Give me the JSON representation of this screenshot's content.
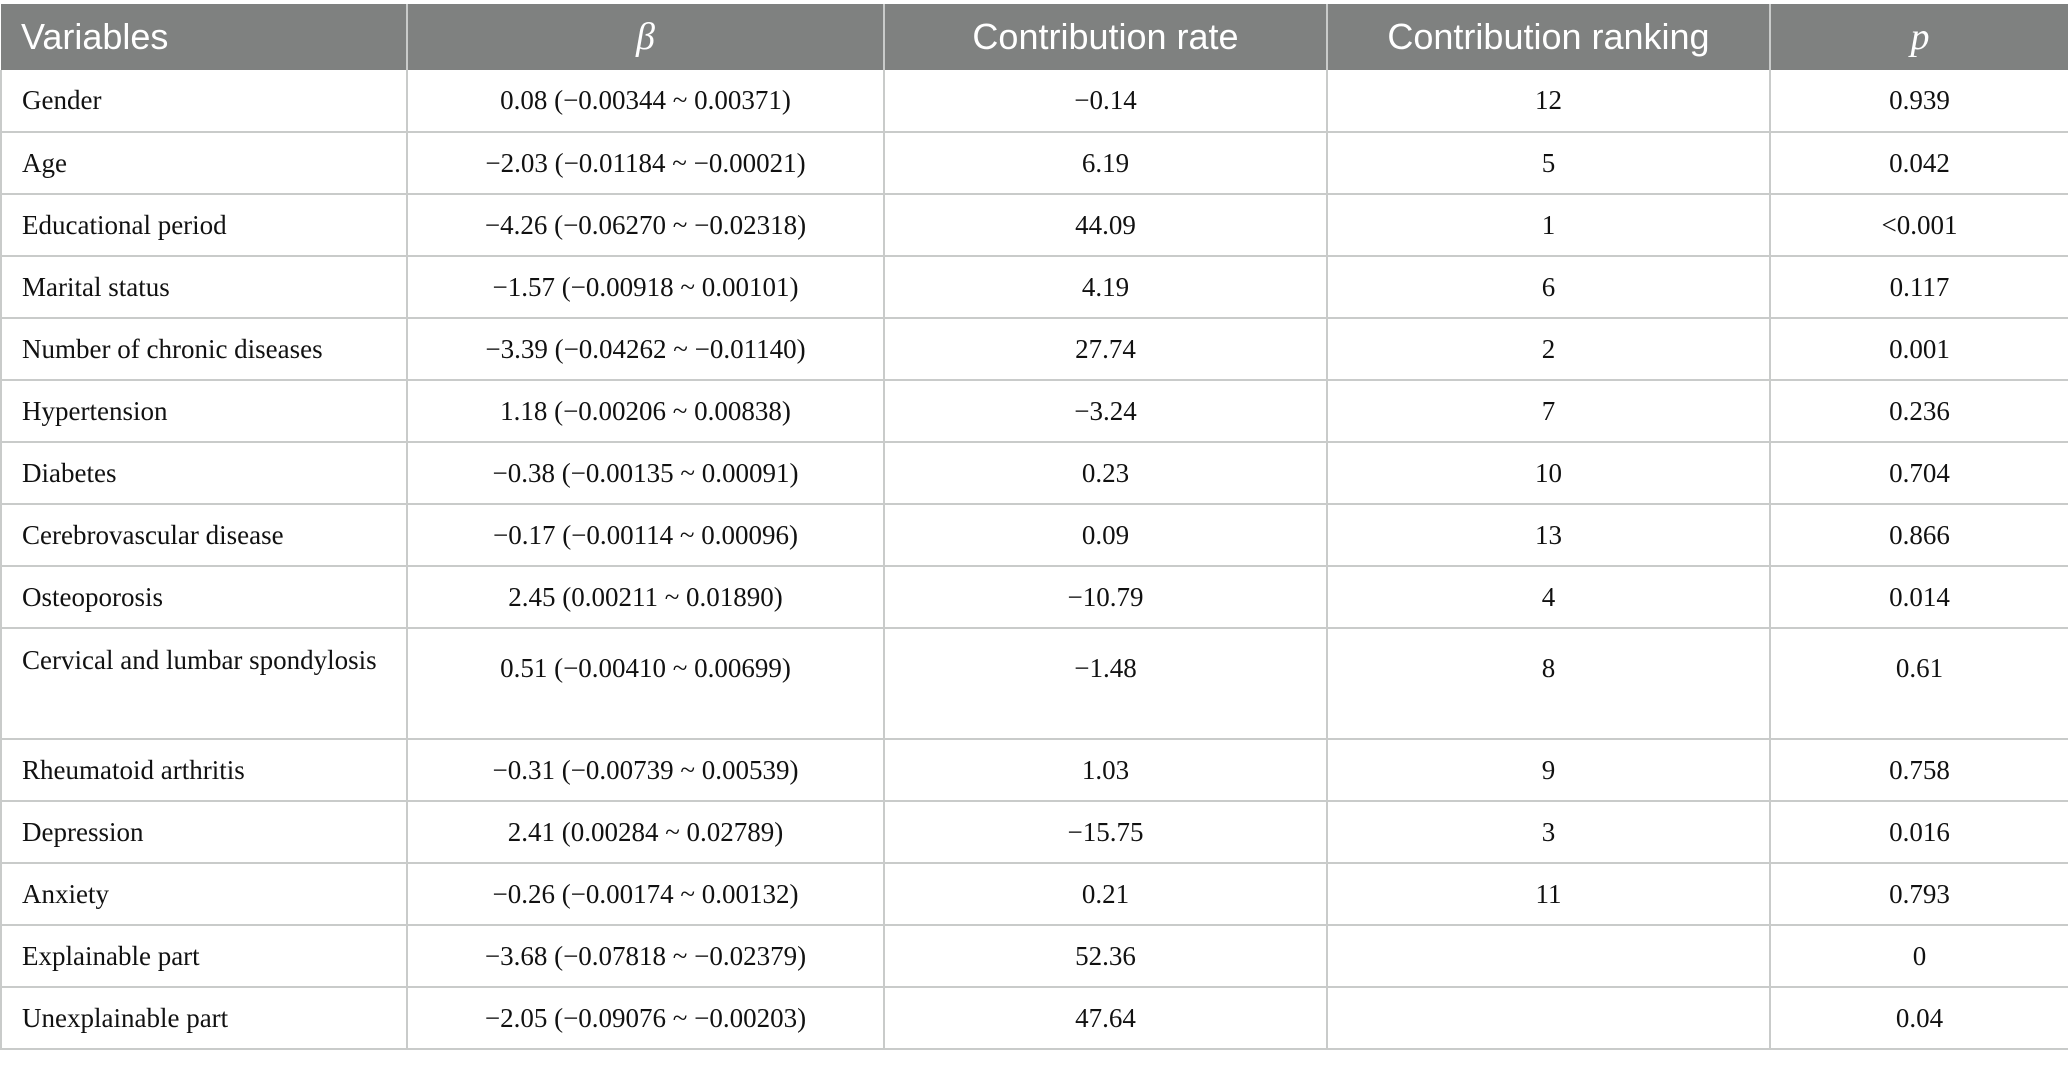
{
  "table": {
    "headers": [
      "Variables",
      "β",
      "Contribution rate",
      "Contribution ranking",
      "p"
    ],
    "rows": [
      [
        "Gender",
        "0.08 (−0.00344 ~ 0.00371)",
        "−0.14",
        "12",
        "0.939"
      ],
      [
        "Age",
        "−2.03 (−0.01184 ~ −0.00021)",
        "6.19",
        "5",
        "0.042"
      ],
      [
        "Educational period",
        "−4.26 (−0.06270 ~ −0.02318)",
        "44.09",
        "1",
        "<0.001"
      ],
      [
        "Marital status",
        "−1.57 (−0.00918 ~ 0.00101)",
        "4.19",
        "6",
        "0.117"
      ],
      [
        "Number of chronic diseases",
        "−3.39 (−0.04262 ~ −0.01140)",
        "27.74",
        "2",
        "0.001"
      ],
      [
        "Hypertension",
        "1.18 (−0.00206 ~ 0.00838)",
        "−3.24",
        "7",
        "0.236"
      ],
      [
        "Diabetes",
        "−0.38 (−0.00135 ~ 0.00091)",
        "0.23",
        "10",
        "0.704"
      ],
      [
        "Cerebrovascular disease",
        "−0.17 (−0.00114 ~ 0.00096)",
        "0.09",
        "13",
        "0.866"
      ],
      [
        "Osteoporosis",
        "2.45 (0.00211 ~ 0.01890)",
        "−10.79",
        "4",
        "0.014"
      ],
      [
        "Cervical and lumbar spondylosis",
        "0.51 (−0.00410 ~ 0.00699)",
        "−1.48",
        "8",
        "0.61"
      ],
      [
        "Rheumatoid arthritis",
        "−0.31 (−0.00739 ~ 0.00539)",
        "1.03",
        "9",
        "0.758"
      ],
      [
        "Depression",
        "2.41 (0.00284 ~ 0.02789)",
        "−15.75",
        "3",
        "0.016"
      ],
      [
        "Anxiety",
        "−0.26 (−0.00174 ~ 0.00132)",
        "0.21",
        "11",
        "0.793"
      ],
      [
        "Explainable part",
        "−3.68 (−0.07818 ~ −0.02379)",
        "52.36",
        "",
        "0"
      ],
      [
        "Unexplainable part",
        "−2.05 (−0.09076 ~ −0.00203)",
        "47.64",
        "",
        "0.04"
      ]
    ]
  },
  "colors": {
    "header_bg": "#7f8180",
    "header_text": "#ffffff",
    "grid": "#c9cbca"
  }
}
